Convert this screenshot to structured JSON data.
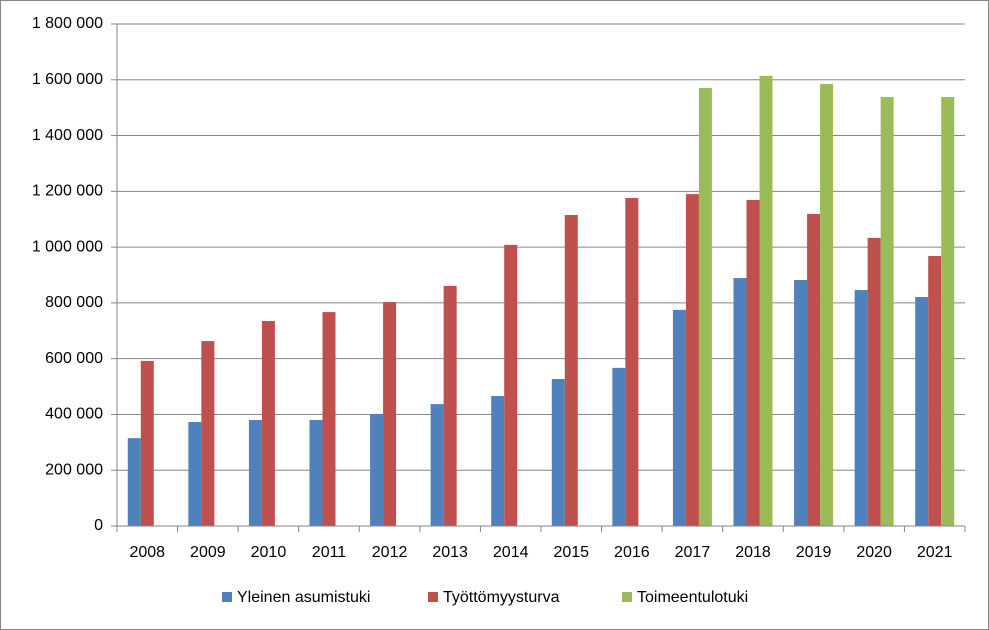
{
  "chart_data": {
    "type": "bar",
    "categories": [
      "2008",
      "2009",
      "2010",
      "2011",
      "2012",
      "2013",
      "2014",
      "2015",
      "2016",
      "2017",
      "2018",
      "2019",
      "2020",
      "2021"
    ],
    "series": [
      {
        "name": "Yleinen asumistuki",
        "color": "#4f81bd",
        "values": [
          315000,
          373000,
          380000,
          380000,
          402000,
          437000,
          466000,
          527000,
          567000,
          775000,
          889000,
          882000,
          846000,
          821000
        ]
      },
      {
        "name": "Työttömyysturva",
        "color": "#c0504d",
        "values": [
          592000,
          663000,
          735000,
          767000,
          803000,
          861000,
          1008000,
          1115000,
          1176000,
          1190000,
          1169000,
          1119000,
          1033000,
          968000
        ]
      },
      {
        "name": "Toimeentulotuki",
        "color": "#9bbb59",
        "values": [
          null,
          null,
          null,
          null,
          null,
          null,
          null,
          null,
          null,
          1571000,
          1614000,
          1585000,
          1538000,
          1538000
        ]
      }
    ],
    "ylim": [
      0,
      1800000
    ],
    "yticks": [
      0,
      {
        "value": 200000,
        "label": "200 000"
      },
      {
        "value": 400000,
        "label": "400 000"
      },
      {
        "value": 600000,
        "label": "600 000"
      },
      {
        "value": 800000,
        "label": "800 000"
      },
      {
        "value": 1000000,
        "label": "1 000 000"
      },
      {
        "value": 1200000,
        "label": "1 200 000"
      },
      {
        "value": 1400000,
        "label": "1 400 000"
      },
      {
        "value": 1600000,
        "label": "1 600 000"
      },
      {
        "value": 1800000,
        "label": "1 800 000"
      }
    ],
    "grid": true,
    "legend": "bottom"
  }
}
